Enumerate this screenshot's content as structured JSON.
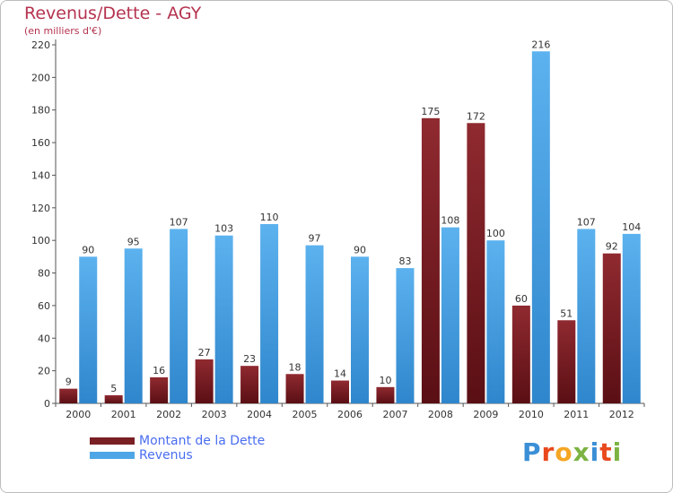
{
  "title": "Revenus/Dette - AGY",
  "subtitle": "(en milliers d'€)",
  "logo": {
    "text": "Proxiti",
    "colors": [
      "#3a8fd6",
      "#e8491d",
      "#f5a623",
      "#7cb342",
      "#3a8fd6",
      "#e8491d",
      "#7cb342"
    ]
  },
  "legend": [
    {
      "label": "Montant de la Dette",
      "color": "#7a1f24"
    },
    {
      "label": "Revenus",
      "color": "#4ea6e6"
    }
  ],
  "chart_data": {
    "type": "bar",
    "title": "Revenus/Dette - AGY",
    "subtitle": "(en milliers d'€)",
    "categories": [
      "2000",
      "2001",
      "2002",
      "2003",
      "2004",
      "2005",
      "2006",
      "2007",
      "2008",
      "2009",
      "2010",
      "2011",
      "2012"
    ],
    "series": [
      {
        "name": "Montant de la Dette",
        "color": "#7a1f24",
        "values": [
          9,
          5,
          16,
          27,
          23,
          18,
          14,
          10,
          175,
          172,
          60,
          51,
          92
        ]
      },
      {
        "name": "Revenus",
        "color": "#4ea6e6",
        "values": [
          90,
          95,
          107,
          103,
          110,
          97,
          90,
          83,
          108,
          100,
          216,
          107,
          104
        ]
      }
    ],
    "ylim": [
      0,
      220
    ],
    "yticks": [
      0,
      20,
      40,
      60,
      80,
      100,
      120,
      140,
      160,
      180,
      200,
      220
    ],
    "grid": false,
    "legend_position": "bottom-left"
  }
}
